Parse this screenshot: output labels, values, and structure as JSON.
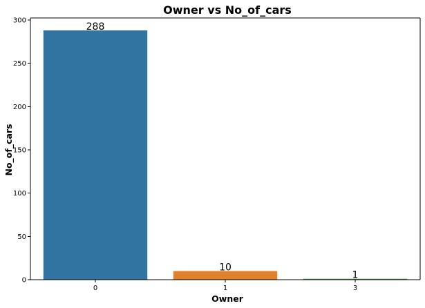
{
  "chart_data": {
    "type": "bar",
    "title": "Owner vs No_of_cars",
    "xlabel": "Owner",
    "ylabel": "No_of_cars",
    "categories": [
      "0",
      "1",
      "3"
    ],
    "values": [
      288,
      10,
      1
    ],
    "data_labels": [
      "288",
      "10",
      "1"
    ],
    "ylim": [
      0,
      302.4
    ],
    "yticks": [
      0,
      50,
      100,
      150,
      200,
      250,
      300
    ],
    "colors": [
      "#3274a1",
      "#e1812c",
      "#3a923a"
    ],
    "grid": false,
    "legend": "none"
  }
}
